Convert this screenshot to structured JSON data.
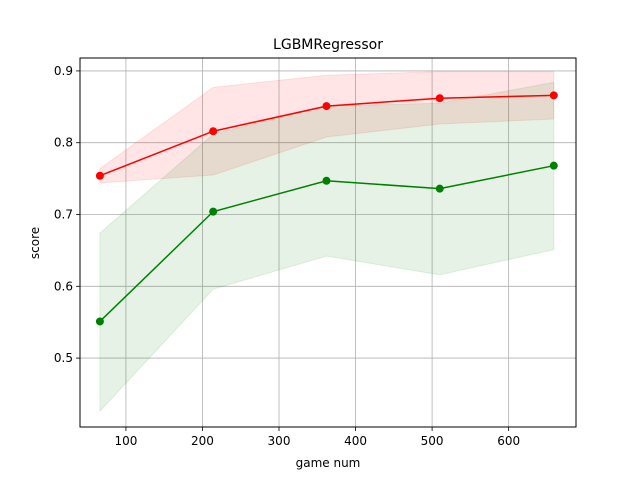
{
  "chart_data": {
    "type": "line",
    "title": "LGBMRegressor",
    "xlabel": "game num",
    "ylabel": "score",
    "xlim": [
      40,
      688
    ],
    "ylim": [
      0.404,
      0.918
    ],
    "x_ticks": [
      100,
      200,
      300,
      400,
      500,
      600
    ],
    "y_ticks": [
      0.5,
      0.6,
      0.7,
      0.8,
      0.9
    ],
    "x_tick_labels": [
      "100",
      "200",
      "300",
      "400",
      "500",
      "600"
    ],
    "y_tick_labels": [
      "0.5",
      "0.6",
      "0.7",
      "0.8",
      "0.9"
    ],
    "grid": true,
    "legend": "none",
    "x": [
      66,
      214,
      362,
      510,
      659
    ],
    "series": [
      {
        "color": "#ff0000",
        "band_color": "#ff0000",
        "values": [
          0.754,
          0.816,
          0.851,
          0.862,
          0.866
        ],
        "lower": [
          0.744,
          0.755,
          0.808,
          0.826,
          0.833
        ],
        "upper": [
          0.764,
          0.877,
          0.894,
          0.899,
          0.899
        ]
      },
      {
        "color": "#008000",
        "band_color": "#008000",
        "values": [
          0.551,
          0.704,
          0.747,
          0.736,
          0.768
        ],
        "lower": [
          0.426,
          0.596,
          0.642,
          0.616,
          0.651
        ],
        "upper": [
          0.674,
          0.812,
          0.851,
          0.855,
          0.884
        ]
      }
    ]
  }
}
